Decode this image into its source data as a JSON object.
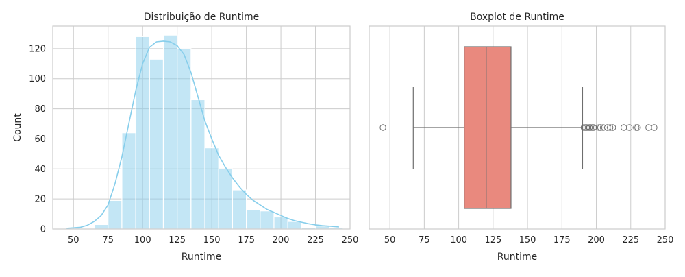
{
  "chart_data": [
    {
      "type": "histogram",
      "title": "Distribuição de Runtime",
      "xlabel": "Runtime",
      "ylabel": "Count",
      "xlim": [
        35,
        250
      ],
      "ylim": [
        0,
        135
      ],
      "xticks": [
        50,
        75,
        100,
        125,
        150,
        175,
        200,
        225,
        250
      ],
      "yticks": [
        0,
        20,
        40,
        60,
        80,
        100,
        120
      ],
      "grid": true,
      "bar_color": "#87CEEB",
      "kde_color": "#87CEEB",
      "bins": [
        {
          "x0": 45,
          "x1": 55,
          "count": 1
        },
        {
          "x0": 55,
          "x1": 65,
          "count": 0
        },
        {
          "x0": 65,
          "x1": 75,
          "count": 3
        },
        {
          "x0": 75,
          "x1": 85,
          "count": 19
        },
        {
          "x0": 85,
          "x1": 95,
          "count": 64
        },
        {
          "x0": 95,
          "x1": 105,
          "count": 128
        },
        {
          "x0": 105,
          "x1": 115,
          "count": 113
        },
        {
          "x0": 115,
          "x1": 125,
          "count": 129
        },
        {
          "x0": 125,
          "x1": 135,
          "count": 120
        },
        {
          "x0": 135,
          "x1": 145,
          "count": 86
        },
        {
          "x0": 145,
          "x1": 155,
          "count": 54
        },
        {
          "x0": 155,
          "x1": 165,
          "count": 40
        },
        {
          "x0": 165,
          "x1": 175,
          "count": 26
        },
        {
          "x0": 175,
          "x1": 185,
          "count": 13
        },
        {
          "x0": 185,
          "x1": 195,
          "count": 12
        },
        {
          "x0": 195,
          "x1": 205,
          "count": 8
        },
        {
          "x0": 205,
          "x1": 215,
          "count": 5
        },
        {
          "x0": 215,
          "x1": 225,
          "count": 1
        },
        {
          "x0": 225,
          "x1": 235,
          "count": 2
        },
        {
          "x0": 235,
          "x1": 245,
          "count": 1
        }
      ],
      "kde": {
        "x": [
          45,
          55,
          60,
          65,
          70,
          75,
          80,
          85,
          90,
          95,
          100,
          105,
          110,
          115,
          120,
          125,
          130,
          135,
          140,
          145,
          150,
          155,
          160,
          165,
          170,
          175,
          180,
          185,
          190,
          195,
          200,
          205,
          210,
          215,
          220,
          225,
          230,
          235,
          242
        ],
        "y": [
          0.5,
          1.2,
          2.5,
          5,
          9,
          16,
          30,
          48,
          70,
          92,
          110,
          121,
          124.5,
          125,
          124.5,
          122,
          116,
          104,
          88,
          72,
          60,
          49,
          41,
          34,
          28,
          23,
          19,
          16,
          13,
          11,
          9,
          7,
          5.5,
          4.5,
          3.5,
          2.8,
          2.3,
          1.9,
          1.4
        ]
      }
    },
    {
      "type": "boxplot",
      "title": "Boxplot de Runtime",
      "xlabel": "Runtime",
      "xlim": [
        35,
        250
      ],
      "xticks": [
        50,
        75,
        100,
        125,
        150,
        175,
        200,
        225,
        250
      ],
      "grid": true,
      "box_color": "#E9897E",
      "line_color": "#6e6e6e",
      "q1": 104,
      "median": 120,
      "q3": 138,
      "whisker_low": 67,
      "whisker_high": 190,
      "outliers": [
        45,
        191,
        192,
        193,
        194,
        195,
        196,
        197,
        198,
        202,
        203,
        205,
        208,
        210,
        212,
        220,
        224,
        229,
        230,
        238,
        242
      ]
    }
  ]
}
